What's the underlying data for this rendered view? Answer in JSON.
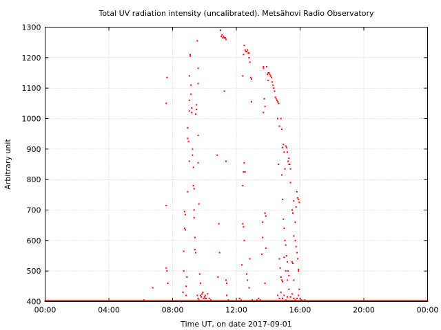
{
  "chart_data": {
    "type": "scatter",
    "title": "Total UV radiation intensity (uncalibrated). Metsähovi Radio Observatory",
    "xlabel": "Time UT, on date 2017-09-01",
    "ylabel": "Arbitrary unit",
    "x_unit": "hours UT",
    "xlim": [
      0,
      24
    ],
    "ylim": [
      400,
      1300
    ],
    "x_ticks": [
      0,
      4,
      8,
      12,
      16,
      20,
      24
    ],
    "x_tick_labels": [
      "00:00",
      "04:00",
      "08:00",
      "12:00",
      "16:00",
      "20:00",
      "00:00"
    ],
    "y_ticks": [
      400,
      500,
      600,
      700,
      800,
      900,
      1000,
      1100,
      1200,
      1300
    ],
    "y_tick_labels": [
      "400",
      "500",
      "600",
      "700",
      "800",
      "900",
      "1000",
      "1100",
      "1200",
      "1300"
    ],
    "grid": true,
    "series": [
      {
        "color": "#ff0000",
        "baseline": {
          "x_start": 0,
          "x_end": 24,
          "y": 400
        },
        "points": [
          [
            6.2,
            405
          ],
          [
            6.75,
            445
          ],
          [
            7.6,
            715
          ],
          [
            7.6,
            1050
          ],
          [
            7.65,
            1135
          ],
          [
            7.6,
            510
          ],
          [
            7.65,
            500
          ],
          [
            7.7,
            460
          ],
          [
            8.55,
            400
          ],
          [
            8.65,
            430
          ],
          [
            8.7,
            500
          ],
          [
            8.7,
            565
          ],
          [
            8.75,
            640
          ],
          [
            8.75,
            695
          ],
          [
            8.8,
            685
          ],
          [
            8.8,
            635
          ],
          [
            8.85,
            450
          ],
          [
            8.85,
            420
          ],
          [
            8.9,
            480
          ],
          [
            8.95,
            760
          ],
          [
            8.95,
            935
          ],
          [
            8.95,
            970
          ],
          [
            9.0,
            925
          ],
          [
            9.05,
            860
          ],
          [
            9.05,
            1025
          ],
          [
            9.05,
            1060
          ],
          [
            9.05,
            1140
          ],
          [
            9.1,
            1205
          ],
          [
            9.1,
            1210
          ],
          [
            9.15,
            1110
          ],
          [
            9.15,
            1080
          ],
          [
            9.2,
            1035
          ],
          [
            9.2,
            1020
          ],
          [
            9.25,
            900
          ],
          [
            9.25,
            880
          ],
          [
            9.3,
            840
          ],
          [
            9.3,
            780
          ],
          [
            9.35,
            770
          ],
          [
            9.35,
            700
          ],
          [
            9.35,
            675
          ],
          [
            9.4,
            610
          ],
          [
            9.4,
            570
          ],
          [
            9.45,
            560
          ],
          [
            9.45,
            1015
          ],
          [
            9.5,
            1045
          ],
          [
            9.5,
            1030
          ],
          [
            9.55,
            1255
          ],
          [
            9.6,
            1165
          ],
          [
            9.6,
            1115
          ],
          [
            9.6,
            945
          ],
          [
            9.6,
            855
          ],
          [
            9.65,
            720
          ],
          [
            9.7,
            490
          ],
          [
            9.75,
            460
          ],
          [
            9.55,
            420
          ],
          [
            9.6,
            410
          ],
          [
            9.65,
            405
          ],
          [
            9.75,
            420
          ],
          [
            9.8,
            415
          ],
          [
            9.85,
            425
          ],
          [
            9.9,
            430
          ],
          [
            9.95,
            410
          ],
          [
            10.0,
            415
          ],
          [
            10.05,
            420
          ],
          [
            10.1,
            410
          ],
          [
            10.2,
            425
          ],
          [
            10.3,
            410
          ],
          [
            10.4,
            405
          ],
          [
            10.8,
            880
          ],
          [
            10.9,
            655
          ],
          [
            10.95,
            560
          ],
          [
            10.85,
            480
          ],
          [
            11.0,
            1290
          ],
          [
            11.05,
            1270
          ],
          [
            11.1,
            1275
          ],
          [
            11.15,
            1265
          ],
          [
            11.2,
            1270
          ],
          [
            11.25,
            1265
          ],
          [
            11.3,
            1265
          ],
          [
            11.35,
            1260
          ],
          [
            11.25,
            1090
          ],
          [
            11.35,
            860
          ],
          [
            11.4,
            460
          ],
          [
            11.35,
            470
          ],
          [
            11.4,
            420
          ],
          [
            11.5,
            405
          ],
          [
            12.2,
            410
          ],
          [
            12.3,
            405
          ],
          [
            12.35,
            520
          ],
          [
            12.4,
            780
          ],
          [
            12.45,
            825
          ],
          [
            12.5,
            855
          ],
          [
            12.4,
            655
          ],
          [
            12.45,
            645
          ],
          [
            12.5,
            600
          ],
          [
            12.4,
            1140
          ],
          [
            12.45,
            1210
          ],
          [
            12.5,
            1240
          ],
          [
            12.55,
            1225
          ],
          [
            12.6,
            1220
          ],
          [
            12.65,
            1220
          ],
          [
            12.7,
            1225
          ],
          [
            12.75,
            1215
          ],
          [
            12.8,
            1215
          ],
          [
            12.8,
            1200
          ],
          [
            12.85,
            1185
          ],
          [
            12.9,
            1135
          ],
          [
            12.95,
            1130
          ],
          [
            12.95,
            1055
          ],
          [
            12.55,
            825
          ],
          [
            12.65,
            490
          ],
          [
            12.7,
            470
          ],
          [
            12.8,
            445
          ],
          [
            12.85,
            540
          ],
          [
            13.0,
            405
          ],
          [
            13.1,
            400
          ],
          [
            13.3,
            405
          ],
          [
            13.4,
            410
          ],
          [
            13.5,
            405
          ],
          [
            13.6,
            555
          ],
          [
            13.65,
            610
          ],
          [
            13.65,
            660
          ],
          [
            13.7,
            1165
          ],
          [
            13.7,
            1170
          ],
          [
            13.7,
            1020
          ],
          [
            13.75,
            1065
          ],
          [
            13.8,
            1040
          ],
          [
            13.8,
            690
          ],
          [
            13.85,
            680
          ],
          [
            13.85,
            575
          ],
          [
            13.8,
            460
          ],
          [
            13.9,
            1170
          ],
          [
            13.95,
            1145
          ],
          [
            14.0,
            1125
          ],
          [
            14.0,
            1150
          ],
          [
            14.05,
            1150
          ],
          [
            14.1,
            1145
          ],
          [
            14.15,
            1140
          ],
          [
            14.2,
            1135
          ],
          [
            14.25,
            1120
          ],
          [
            14.3,
            1110
          ],
          [
            14.35,
            1100
          ],
          [
            14.4,
            1090
          ],
          [
            14.45,
            1070
          ],
          [
            14.5,
            1065
          ],
          [
            14.55,
            1060
          ],
          [
            14.6,
            1055
          ],
          [
            14.65,
            1050
          ],
          [
            14.6,
            1000
          ],
          [
            14.65,
            850
          ],
          [
            14.7,
            975
          ],
          [
            14.8,
            1000
          ],
          [
            14.85,
            965
          ],
          [
            14.9,
            905
          ],
          [
            14.95,
            915
          ],
          [
            15.0,
            890
          ],
          [
            15.05,
            835
          ],
          [
            15.1,
            910
          ],
          [
            15.15,
            905
          ],
          [
            15.2,
            890
          ],
          [
            15.25,
            860
          ],
          [
            15.3,
            850
          ],
          [
            15.3,
            870
          ],
          [
            15.35,
            850
          ],
          [
            15.4,
            835
          ],
          [
            14.85,
            815
          ],
          [
            14.9,
            735
          ],
          [
            14.95,
            670
          ],
          [
            15.0,
            640
          ],
          [
            15.05,
            600
          ],
          [
            15.1,
            585
          ],
          [
            15.15,
            550
          ],
          [
            15.2,
            530
          ],
          [
            15.25,
            500
          ],
          [
            15.3,
            485
          ],
          [
            14.7,
            540
          ],
          [
            14.75,
            510
          ],
          [
            14.8,
            480
          ],
          [
            14.85,
            470
          ],
          [
            14.9,
            465
          ],
          [
            15.0,
            545
          ],
          [
            15.1,
            500
          ],
          [
            15.2,
            470
          ],
          [
            15.3,
            440
          ],
          [
            14.6,
            420
          ],
          [
            14.7,
            410
          ],
          [
            14.8,
            430
          ],
          [
            14.9,
            410
          ],
          [
            15.0,
            420
          ],
          [
            15.1,
            405
          ],
          [
            15.2,
            415
          ],
          [
            15.4,
            790
          ],
          [
            15.5,
            700
          ],
          [
            15.55,
            690
          ],
          [
            15.6,
            730
          ],
          [
            15.6,
            615
          ],
          [
            15.7,
            660
          ],
          [
            15.75,
            710
          ],
          [
            15.8,
            760
          ],
          [
            15.85,
            740
          ],
          [
            15.9,
            735
          ],
          [
            15.95,
            725
          ],
          [
            15.5,
            530
          ],
          [
            15.55,
            525
          ],
          [
            15.6,
            470
          ],
          [
            15.7,
            600
          ],
          [
            15.75,
            580
          ],
          [
            15.8,
            560
          ],
          [
            15.85,
            540
          ],
          [
            15.9,
            500
          ],
          [
            15.9,
            505
          ],
          [
            15.95,
            440
          ],
          [
            15.4,
            415
          ],
          [
            15.5,
            425
          ],
          [
            15.6,
            410
          ],
          [
            15.7,
            405
          ],
          [
            15.8,
            410
          ],
          [
            15.9,
            420
          ],
          [
            16.0,
            410
          ],
          [
            16.1,
            405
          ],
          [
            16.3,
            405
          ],
          [
            16.5,
            400
          ]
        ]
      }
    ]
  }
}
